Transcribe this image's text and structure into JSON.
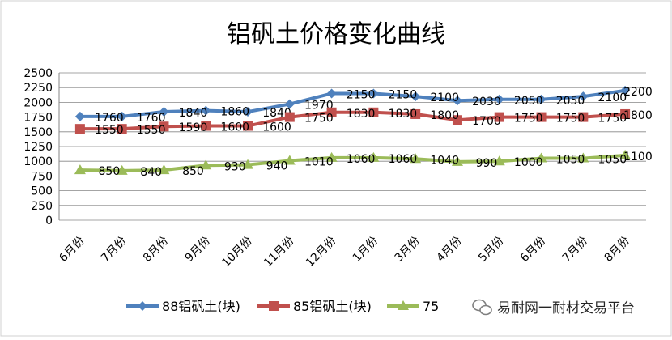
{
  "chart_data": {
    "type": "line",
    "title": "铝矾土价格变化曲线",
    "categories": [
      "6月份",
      "7月份",
      "8月份",
      "9月份",
      "10月份",
      "11月份",
      "12月份",
      "1月份",
      "3月份",
      "4月份",
      "5月份",
      "6月份",
      "7月份",
      "8月份"
    ],
    "ylim": [
      0,
      2500
    ],
    "yticks": [
      0,
      250,
      500,
      750,
      1000,
      1250,
      1500,
      1750,
      2000,
      2250,
      2500
    ],
    "grid": true,
    "legend_position": "bottom",
    "series": [
      {
        "name": "88铝矾土(块)",
        "color": "#4F81BD",
        "marker": "diamond",
        "values": [
          1760,
          1760,
          1840,
          1860,
          1840,
          1970,
          2150,
          2150,
          2100,
          2030,
          2050,
          2050,
          2100,
          2200
        ],
        "labels": [
          "1760",
          "1760",
          "1840",
          "1860",
          "1840",
          "1970",
          "2150",
          "2150",
          "2100",
          "2030",
          "2050",
          "2050",
          "2100",
          "2200"
        ]
      },
      {
        "name": "85铝矾土(块)",
        "color": "#C0504D",
        "marker": "square",
        "values": [
          1550,
          1550,
          1590,
          1600,
          1600,
          1750,
          1830,
          1830,
          1800,
          1700,
          1750,
          1750,
          1750,
          1800
        ],
        "labels": [
          "1550",
          "1550",
          "1590",
          "1600",
          "1600",
          "1750",
          "1830",
          "1830",
          "1800",
          "1700",
          "1750",
          "1750",
          "1750",
          "1800"
        ]
      },
      {
        "name": "75",
        "color": "#9BBB59",
        "marker": "triangle",
        "values": [
          850,
          840,
          850,
          930,
          940,
          1010,
          1060,
          1060,
          1040,
          990,
          1000,
          1050,
          1050,
          1100
        ],
        "labels": [
          "850",
          "840",
          "850",
          "930",
          "940",
          "1010",
          "1060",
          "1060",
          "1040",
          "990",
          "1000",
          "1050",
          "1050",
          "1100"
        ]
      }
    ]
  },
  "watermark": {
    "text": "易耐网一耐材交易平台",
    "icon": "wechat-icon"
  }
}
